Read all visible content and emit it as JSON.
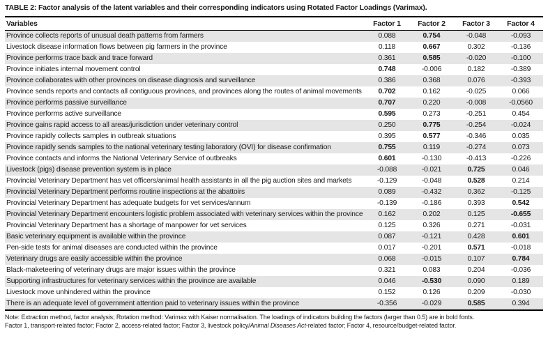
{
  "table": {
    "title": "TABLE 2: Factor analysis of the latent variables and their corresponding indicators using Rotated Factor Loadings (Varimax).",
    "columns": [
      "Variables",
      "Factor 1",
      "Factor 2",
      "Factor 3",
      "Factor 4"
    ],
    "rows": [
      {
        "variable": "Province collects reports of unusual death patterns from farmers",
        "values": [
          "0.088",
          "0.754",
          "-0.048",
          "-0.093"
        ]
      },
      {
        "variable": "Livestock disease information flows between pig farmers in the province",
        "values": [
          "0.118",
          "0.667",
          "0.302",
          "-0.136"
        ]
      },
      {
        "variable": "Province performs trace back and trace forward",
        "values": [
          "0.361",
          "0.585",
          "-0.020",
          "-0.100"
        ]
      },
      {
        "variable": "Province initiates internal movement control",
        "values": [
          "0.748",
          "-0.006",
          "0.182",
          "-0.389"
        ]
      },
      {
        "variable": "Province collaborates with other provinces on disease diagnosis and surveillance",
        "values": [
          "0.386",
          "0.368",
          "0.076",
          "-0.393"
        ]
      },
      {
        "variable": "Province sends reports and contacts all contiguous provinces, and provinces along the routes of animal movements",
        "values": [
          "0.702",
          "0.162",
          "-0.025",
          "0.066"
        ]
      },
      {
        "variable": "Province performs passive surveillance",
        "values": [
          "0.707",
          "0.220",
          "-0.008",
          "-0.0560"
        ]
      },
      {
        "variable": "Province performs active surveillance",
        "values": [
          "0.595",
          "0.273",
          "-0.251",
          "0.454"
        ]
      },
      {
        "variable": "Province gains rapid access to all areas/jurisdiction under veterinary control",
        "values": [
          "0.250",
          "0.775",
          "-0.254",
          "-0.024"
        ]
      },
      {
        "variable": "Province rapidly collects samples in outbreak situations",
        "values": [
          "0.395",
          "0.577",
          "-0.346",
          "0.035"
        ]
      },
      {
        "variable": "Province rapidly sends samples to the national veterinary testing laboratory (OVI) for disease confirmation",
        "values": [
          "0.755",
          "0.119",
          "-0.274",
          "0.073"
        ]
      },
      {
        "variable": "Province contacts and informs the National Veterinary Service of outbreaks",
        "values": [
          "0.601",
          "-0.130",
          "-0.413",
          "-0.226"
        ]
      },
      {
        "variable": "Livestock (pigs) disease prevention system is in place",
        "values": [
          "-0.088",
          "-0.021",
          "0.725",
          "0.046"
        ]
      },
      {
        "variable": "Provincial Veterinary Department has vet officers/animal health assistants in all the pig auction sites and markets",
        "values": [
          "-0.129",
          "-0.048",
          "0.528",
          "0.214"
        ]
      },
      {
        "variable": "Provincial Veterinary Department performs routine inspections at the abattoirs",
        "values": [
          "0.089",
          "-0.432",
          "0.362",
          "-0.125"
        ]
      },
      {
        "variable": "Provincial Veterinary Department has adequate budgets for vet services/annum",
        "values": [
          "-0.139",
          "-0.186",
          "0.393",
          "0.542"
        ]
      },
      {
        "variable": "Provincial Veterinary Department encounters logistic problem associated with veterinary services within the province",
        "values": [
          "0.162",
          "0.202",
          "0.125",
          "-0.655"
        ]
      },
      {
        "variable": "Provincial Veterinary Department has a shortage of manpower for vet services",
        "values": [
          "0.125",
          "0.326",
          "0.271",
          "-0.031"
        ]
      },
      {
        "variable": "Basic veterinary equipment is available within the province",
        "values": [
          "0.087",
          "-0.121",
          "0.428",
          "0.601"
        ]
      },
      {
        "variable": "Pen-side tests for animal diseases are conducted within the province",
        "values": [
          "0.017",
          "-0.201",
          "0.571",
          "-0.018"
        ]
      },
      {
        "variable": "Veterinary drugs are easily accessible within the province",
        "values": [
          "0.068",
          "-0.015",
          "0.107",
          "0.784"
        ]
      },
      {
        "variable": "Black-maketeering of veterinary drugs are major issues within the province",
        "values": [
          "0.321",
          "0.083",
          "0.204",
          "-0.036"
        ]
      },
      {
        "variable": "Supporting infrastructures for veterinary services within the province are available",
        "values": [
          "0.046",
          "-0.530",
          "0.090",
          "0.189"
        ]
      },
      {
        "variable": "Livestock move unhindered within the province",
        "values": [
          "0.152",
          "0.126",
          "0.209",
          "-0.030"
        ]
      },
      {
        "variable": "There is an adequate level of government attention paid to veterinary issues within the province",
        "values": [
          "-0.356",
          "-0.029",
          "0.585",
          "0.394"
        ]
      }
    ],
    "bold_threshold": 0.5,
    "notes": {
      "line1": "Note: Extraction method, factor analysis; Rotation method: Varimax with Kaiser normalisation. The loadings of indicators building the factors (larger than 0.5) are in bold fonts.",
      "line2_pre": "Factor 1, transport-related factor; Factor 2, access-related factor; Factor 3, livestock policy/",
      "line2_italic": "Animal Diseases Act",
      "line2_post": "-related factor; Factor 4, resource/budget-related factor."
    },
    "colors": {
      "row_shade": "#e5e5e5",
      "border": "#000000",
      "text": "#1a1a1a"
    }
  }
}
